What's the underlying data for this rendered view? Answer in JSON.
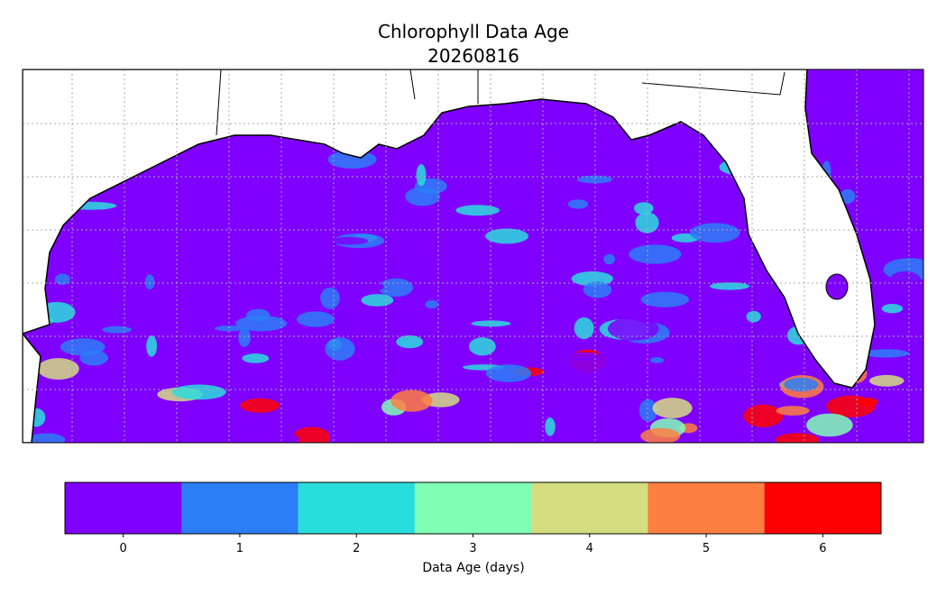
{
  "title": "Chlorophyll Data Age",
  "date": "20260816",
  "colorbar": {
    "label": "Data Age (days)",
    "ticks": [
      0,
      1,
      2,
      3,
      4,
      5,
      6
    ],
    "colors": [
      "#7f00ff",
      "#2c7ef7",
      "#2adddd",
      "#80ffb4",
      "#d4dd80",
      "#ff7f40",
      "#ff0000"
    ]
  }
}
